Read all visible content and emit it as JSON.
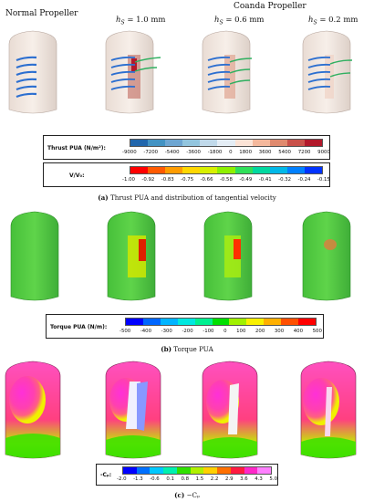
{
  "headers": {
    "normal": "Normal Propeller",
    "coanda": "Coanda Propeller",
    "hs_cases": [
      {
        "symbol": "h",
        "sub": "S",
        "value": "= 1.0 mm"
      },
      {
        "symbol": "h",
        "sub": "S",
        "value": "= 0.6 mm"
      },
      {
        "symbol": "h",
        "sub": "S",
        "value": "= 0.2 mm"
      }
    ]
  },
  "legends": {
    "thrust": {
      "title": "Thrust PUA (N/m²):",
      "ticks": [
        "-9000",
        "-7200",
        "-5400",
        "-3600",
        "-1800",
        "0",
        "1800",
        "3600",
        "5400",
        "7200",
        "9000"
      ],
      "colors": [
        "#2166ac",
        "#4393c3",
        "#6ea6d2",
        "#92c5de",
        "#c0d9ea",
        "#e4edf5",
        "#fbe3d6",
        "#f4b89c",
        "#e08a6e",
        "#c9514a",
        "#b2182b"
      ]
    },
    "velocity": {
      "title": "V/V₀:",
      "ticks": [
        "-1.00",
        "-0.92",
        "-0.83",
        "-0.75",
        "-0.66",
        "-0.58",
        "-0.49",
        "-0.41",
        "-0.32",
        "-0.24",
        "-0.15"
      ],
      "colors": [
        "#ff0000",
        "#ff5a00",
        "#ff9c00",
        "#ffd700",
        "#d8f000",
        "#8ef000",
        "#30e05a",
        "#00d8a0",
        "#00b8e8",
        "#0080ff",
        "#0033ff"
      ]
    },
    "torque": {
      "title": "Torque PUA (N/m):",
      "ticks": [
        "-500",
        "-400",
        "-300",
        "-200",
        "-100",
        "0",
        "100",
        "200",
        "300",
        "400",
        "500"
      ],
      "colors": [
        "#0000ff",
        "#0066ff",
        "#00b4ff",
        "#00e8e0",
        "#00f090",
        "#00e000",
        "#a0f000",
        "#f8f000",
        "#ffb000",
        "#ff5000",
        "#ff0000"
      ]
    },
    "cp": {
      "title": "-Cₚ:",
      "ticks": [
        "-2.0",
        "-1.3",
        "-0.6",
        "0.1",
        "0.8",
        "1.5",
        "2.2",
        "2.9",
        "3.6",
        "4.3",
        "5.0"
      ],
      "colors": [
        "#0000ff",
        "#0070ff",
        "#00c8ff",
        "#00f0b0",
        "#30e000",
        "#b0f000",
        "#ffd000",
        "#ff7000",
        "#ff1a40",
        "#ff28c8",
        "#ff80ff"
      ]
    }
  },
  "captions": {
    "a": {
      "label": "(a)",
      "text": " Thrust PUA and distribution of tangential velocity"
    },
    "b": {
      "label": "(b)",
      "text": " Torque PUA"
    },
    "c": {
      "label": "(c)",
      "text": " −Cₚ"
    }
  }
}
